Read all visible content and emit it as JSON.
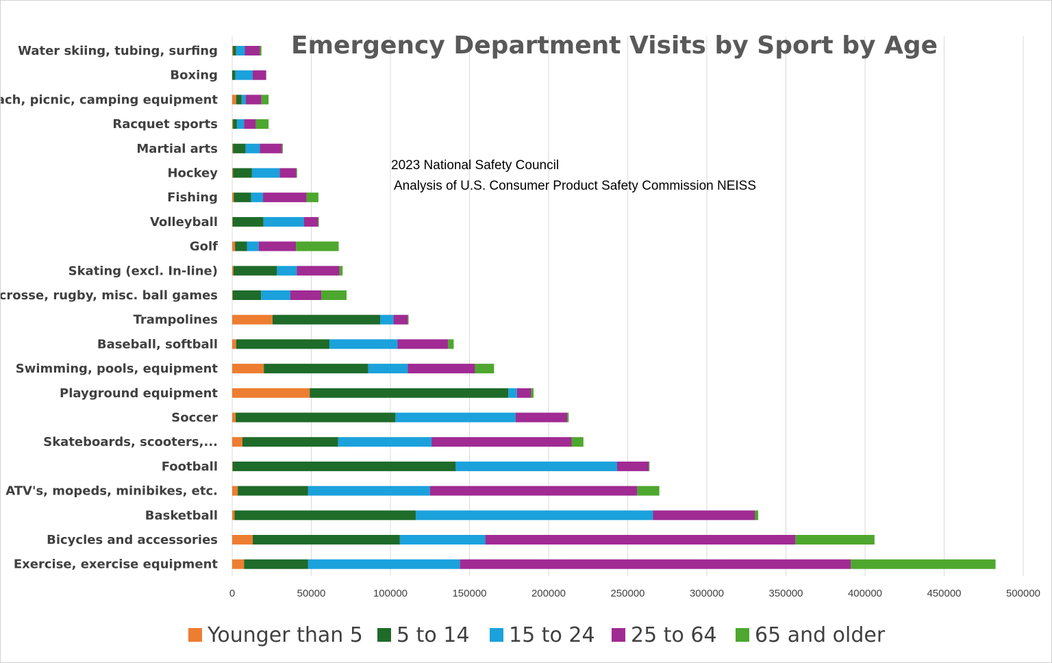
{
  "chart_data": {
    "type": "bar",
    "orientation": "horizontal",
    "stacked": true,
    "title": "Emergency Department Visits by Sport by Age",
    "annotation": [
      "2023 National Safety Council",
      "Analysis of U.S. Consumer Product Safety Commission NEISS"
    ],
    "xlim": [
      0,
      500000
    ],
    "x_ticks": [
      0,
      50000,
      100000,
      150000,
      200000,
      250000,
      300000,
      350000,
      400000,
      450000,
      500000
    ],
    "x_tick_labels": [
      "0",
      "50000",
      "100000",
      "150000",
      "200000",
      "250000",
      "300000",
      "350000",
      "400000",
      "450000",
      "500000"
    ],
    "grid": "vertical",
    "legend_position": "bottom",
    "categories": [
      "Water skiing, tubing, surfing",
      "Boxing",
      "Beach, picnic, camping equipment",
      "Racquet sports",
      "Martial arts",
      "Hockey",
      "Fishing",
      "Volleyball",
      "Golf",
      "Skating (excl. In-line)",
      "Lacrosse, rugby, misc. ball games",
      "Trampolines",
      "Baseball, softball",
      "Swimming, pools, equipment",
      "Playground equipment",
      "Soccer",
      "Skateboards, scooters,...",
      "Football",
      "ATV's, mopeds, minibikes, etc.",
      "Basketball",
      "Bicycles and accessories",
      "Exercise, exercise equipment"
    ],
    "series": [
      {
        "name": "Younger than 5",
        "color": "#ED7D31",
        "values": [
          500,
          0,
          2500,
          500,
          500,
          500,
          1000,
          300,
          1800,
          800,
          300,
          25500,
          2500,
          20000,
          49000,
          2200,
          6500,
          300,
          3500,
          1500,
          13000,
          7500
        ]
      },
      {
        "name": "5 to 14",
        "color": "#1E6B2A",
        "values": [
          2000,
          2000,
          3500,
          2500,
          8000,
          12000,
          11000,
          19500,
          7500,
          27500,
          18000,
          68000,
          59000,
          66000,
          125500,
          101000,
          60500,
          141000,
          44500,
          114500,
          93000,
          40500
        ]
      },
      {
        "name": "15 to 24",
        "color": "#1BA1DB",
        "values": [
          5500,
          11000,
          2500,
          4500,
          9000,
          17500,
          7500,
          25500,
          7500,
          12500,
          18500,
          8500,
          43000,
          25000,
          5500,
          76000,
          59000,
          102000,
          77000,
          150000,
          54000,
          96000
        ]
      },
      {
        "name": "25 to 64",
        "color": "#A02B93",
        "values": [
          9500,
          8500,
          10000,
          7500,
          14000,
          10500,
          27500,
          9000,
          23500,
          27000,
          19500,
          9000,
          32000,
          42500,
          9000,
          32500,
          88500,
          20000,
          131000,
          64500,
          196000,
          247000
        ]
      },
      {
        "name": "65 and older",
        "color": "#4EA72E",
        "values": [
          1000,
          0,
          4500,
          8000,
          500,
          500,
          7500,
          500,
          27000,
          2000,
          16000,
          500,
          3500,
          12000,
          1500,
          1000,
          7500,
          500,
          14000,
          2000,
          50000,
          91500
        ]
      }
    ]
  }
}
